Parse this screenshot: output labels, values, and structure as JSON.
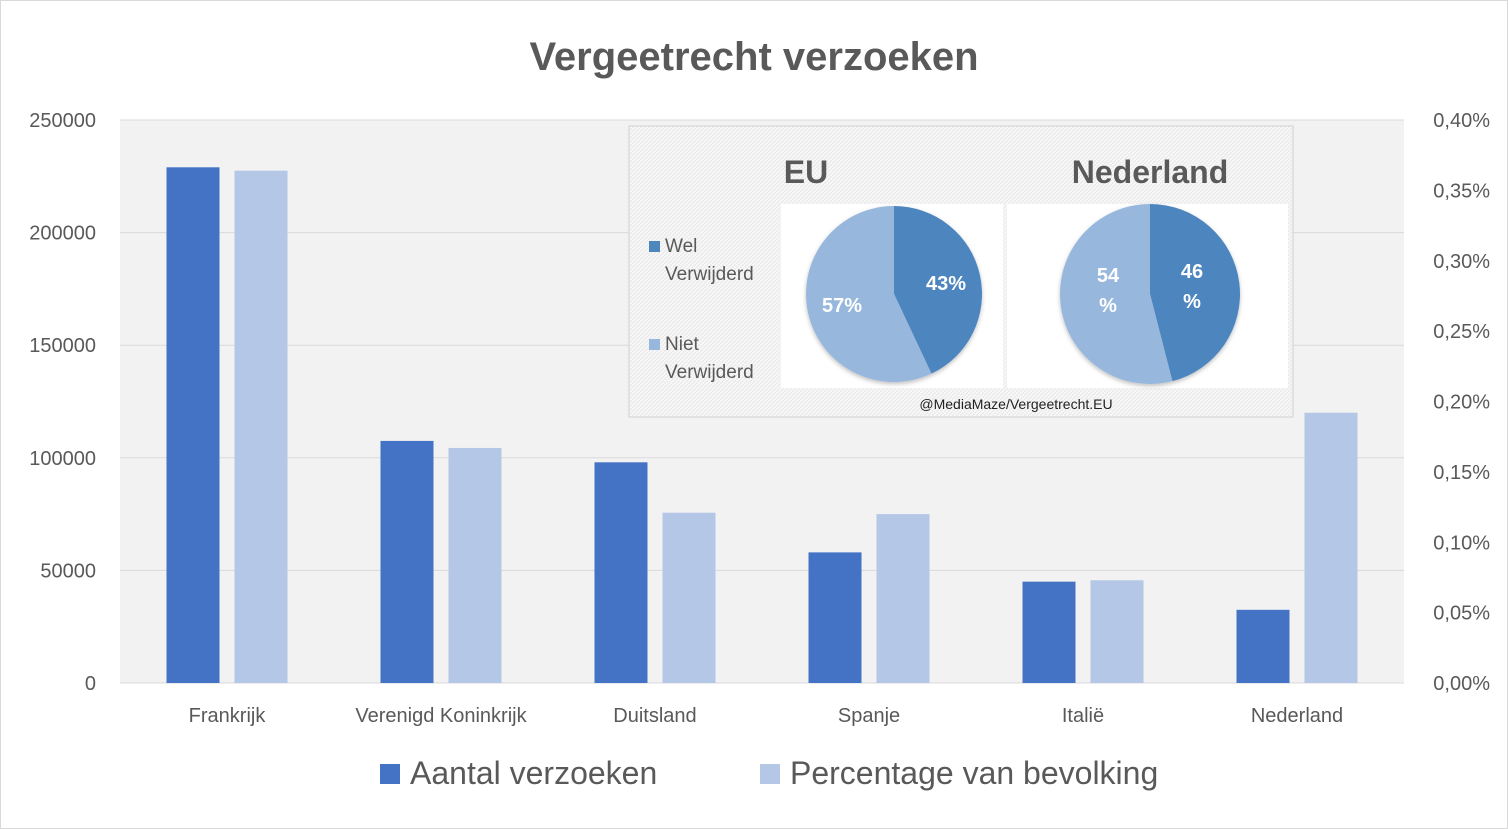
{
  "chart_data": [
    {
      "type": "bar",
      "title": "Vergeetrecht verzoeken",
      "categories": [
        "Frankrijk",
        "Verenigd Koninkrijk",
        "Duitsland",
        "Spanje",
        "Italië",
        "Nederland"
      ],
      "y_ticks": [
        "0",
        "50000",
        "100000",
        "150000",
        "200000",
        "250000"
      ],
      "y2_ticks": [
        "0,00%",
        "0,05%",
        "0,10%",
        "0,15%",
        "0,20%",
        "0,25%",
        "0,30%",
        "0,35%",
        "0,40%"
      ],
      "ylim": [
        0,
        250000
      ],
      "y2lim": [
        0,
        0.4
      ],
      "grid": true,
      "legend_position": "bottom",
      "series": [
        {
          "name": "Aantal verzoeken",
          "axis": "left",
          "color": "#4472C4",
          "values": [
            229000,
            107500,
            98000,
            58000,
            45000,
            32500
          ]
        },
        {
          "name": "Percentage van bevolking",
          "axis": "right",
          "color": "#B4C7E7",
          "values": [
            0.364,
            0.167,
            0.121,
            0.12,
            0.073,
            0.192
          ]
        }
      ]
    },
    {
      "type": "pie",
      "title": "EU",
      "labels": [
        "Wel Verwijderd",
        "Niet Verwijderd"
      ],
      "values": [
        43,
        57
      ],
      "value_labels": [
        "43%",
        "57%"
      ],
      "colors": [
        "#4E86BE",
        "#98B7DD"
      ]
    },
    {
      "type": "pie",
      "title": "Nederland",
      "labels": [
        "Wel Verwijderd",
        "Niet Verwijderd"
      ],
      "values": [
        46,
        54
      ],
      "value_labels": [
        "46 %",
        "54 %"
      ],
      "colors": [
        "#4E86BE",
        "#98B7DD"
      ]
    }
  ],
  "inset_legend": {
    "items": [
      {
        "lines": [
          "Wel",
          "Verwijderd"
        ],
        "color": "#4E86BE"
      },
      {
        "lines": [
          "Niet",
          "Verwijderd"
        ],
        "color": "#98B7DD"
      }
    ]
  },
  "credit": "@MediaMaze/Vergeetrecht.EU"
}
